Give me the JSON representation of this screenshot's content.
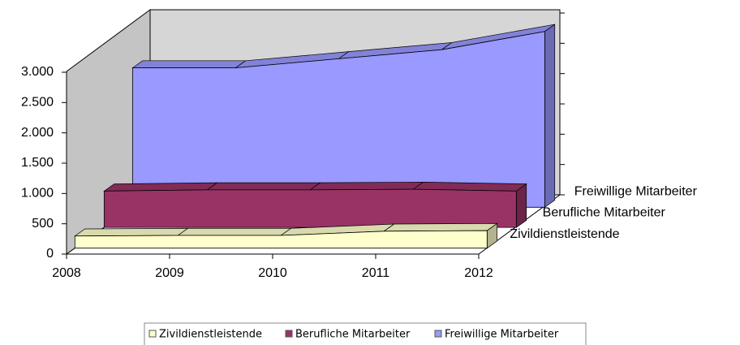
{
  "chart_data": {
    "type": "area",
    "categories": [
      "2008",
      "2009",
      "2010",
      "2011",
      "2012"
    ],
    "series": [
      {
        "name": "Zivildienstleistende",
        "color": "#ffffcc",
        "values": [
          200,
          210,
          210,
          280,
          290
        ]
      },
      {
        "name": "Berufliche Mitarbeiter",
        "color": "#993366",
        "values": [
          600,
          620,
          620,
          630,
          600
        ]
      },
      {
        "name": "Freiwillige Mitarbeiter",
        "color": "#9999ff",
        "values": [
          2300,
          2300,
          2450,
          2600,
          2900
        ]
      }
    ],
    "ylim": [
      0,
      3000
    ],
    "yticks": [
      0,
      500,
      {
        "value": 1000,
        "label": "1.000"
      },
      {
        "value": 1500,
        "label": "1.500"
      },
      {
        "value": 2000,
        "label": "2.000"
      },
      {
        "value": 2500,
        "label": "2.500"
      },
      {
        "value": 3000,
        "label": "3.000"
      }
    ],
    "legend": "bottom"
  }
}
